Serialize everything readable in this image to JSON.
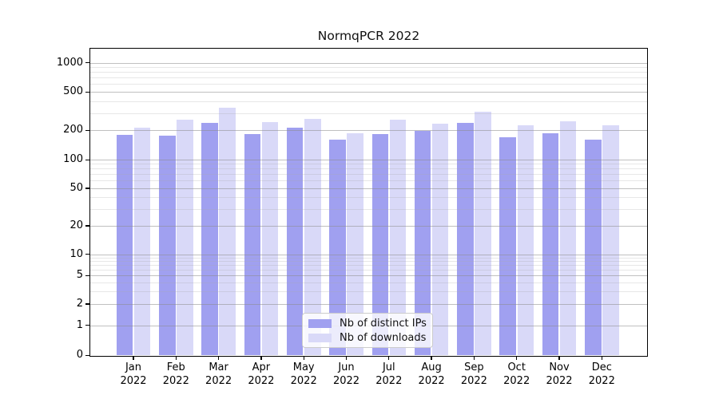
{
  "title": "NormqPCR 2022",
  "chart_data": {
    "type": "bar",
    "title": "NormqPCR 2022",
    "categories": [
      "Jan",
      "Feb",
      "Mar",
      "Apr",
      "May",
      "Jun",
      "Jul",
      "Aug",
      "Sep",
      "Oct",
      "Nov",
      "Dec"
    ],
    "year": "2022",
    "series": [
      {
        "name": "Nb of distinct IPs",
        "color": "#a0a0f0",
        "values": [
          180,
          178,
          238,
          185,
          212,
          162,
          183,
          197,
          241,
          171,
          188,
          161
        ]
      },
      {
        "name": "Nb of downloads",
        "color": "#d9d9f8",
        "values": [
          213,
          258,
          340,
          246,
          261,
          187,
          259,
          233,
          311,
          225,
          250,
          225
        ]
      }
    ],
    "y_axis": {
      "scale": "symlog",
      "tick_values": [
        0,
        1,
        2,
        5,
        10,
        20,
        50,
        100,
        200,
        500,
        1000
      ],
      "tick_labels": [
        "0",
        "1",
        "2",
        "5",
        "10",
        "20",
        "50",
        "100",
        "200",
        "500",
        "1000"
      ],
      "minor_gridlines": [
        3,
        4,
        6,
        7,
        8,
        9,
        30,
        40,
        60,
        70,
        80,
        90,
        300,
        400,
        600,
        700,
        800,
        900
      ],
      "ylim_bottom": 0
    },
    "x_axis": {
      "tick_label_line1": [
        "Jan",
        "Feb",
        "Mar",
        "Apr",
        "May",
        "Jun",
        "Jul",
        "Aug",
        "Sep",
        "Oct",
        "Nov",
        "Dec"
      ],
      "tick_label_line2": "2022"
    },
    "legend": {
      "position": "lower center",
      "entries": [
        "Nb of distinct IPs",
        "Nb of downloads"
      ]
    },
    "grid": "horizontal major and minor gridlines"
  },
  "colors": {
    "ips_bar": "#a0a0f0",
    "downloads_bar": "#d9d9f8",
    "plot_border": "#000000",
    "major_grid": "#b8b8b8",
    "minor_grid": "#e5e5e5",
    "background": "#ffffff"
  }
}
